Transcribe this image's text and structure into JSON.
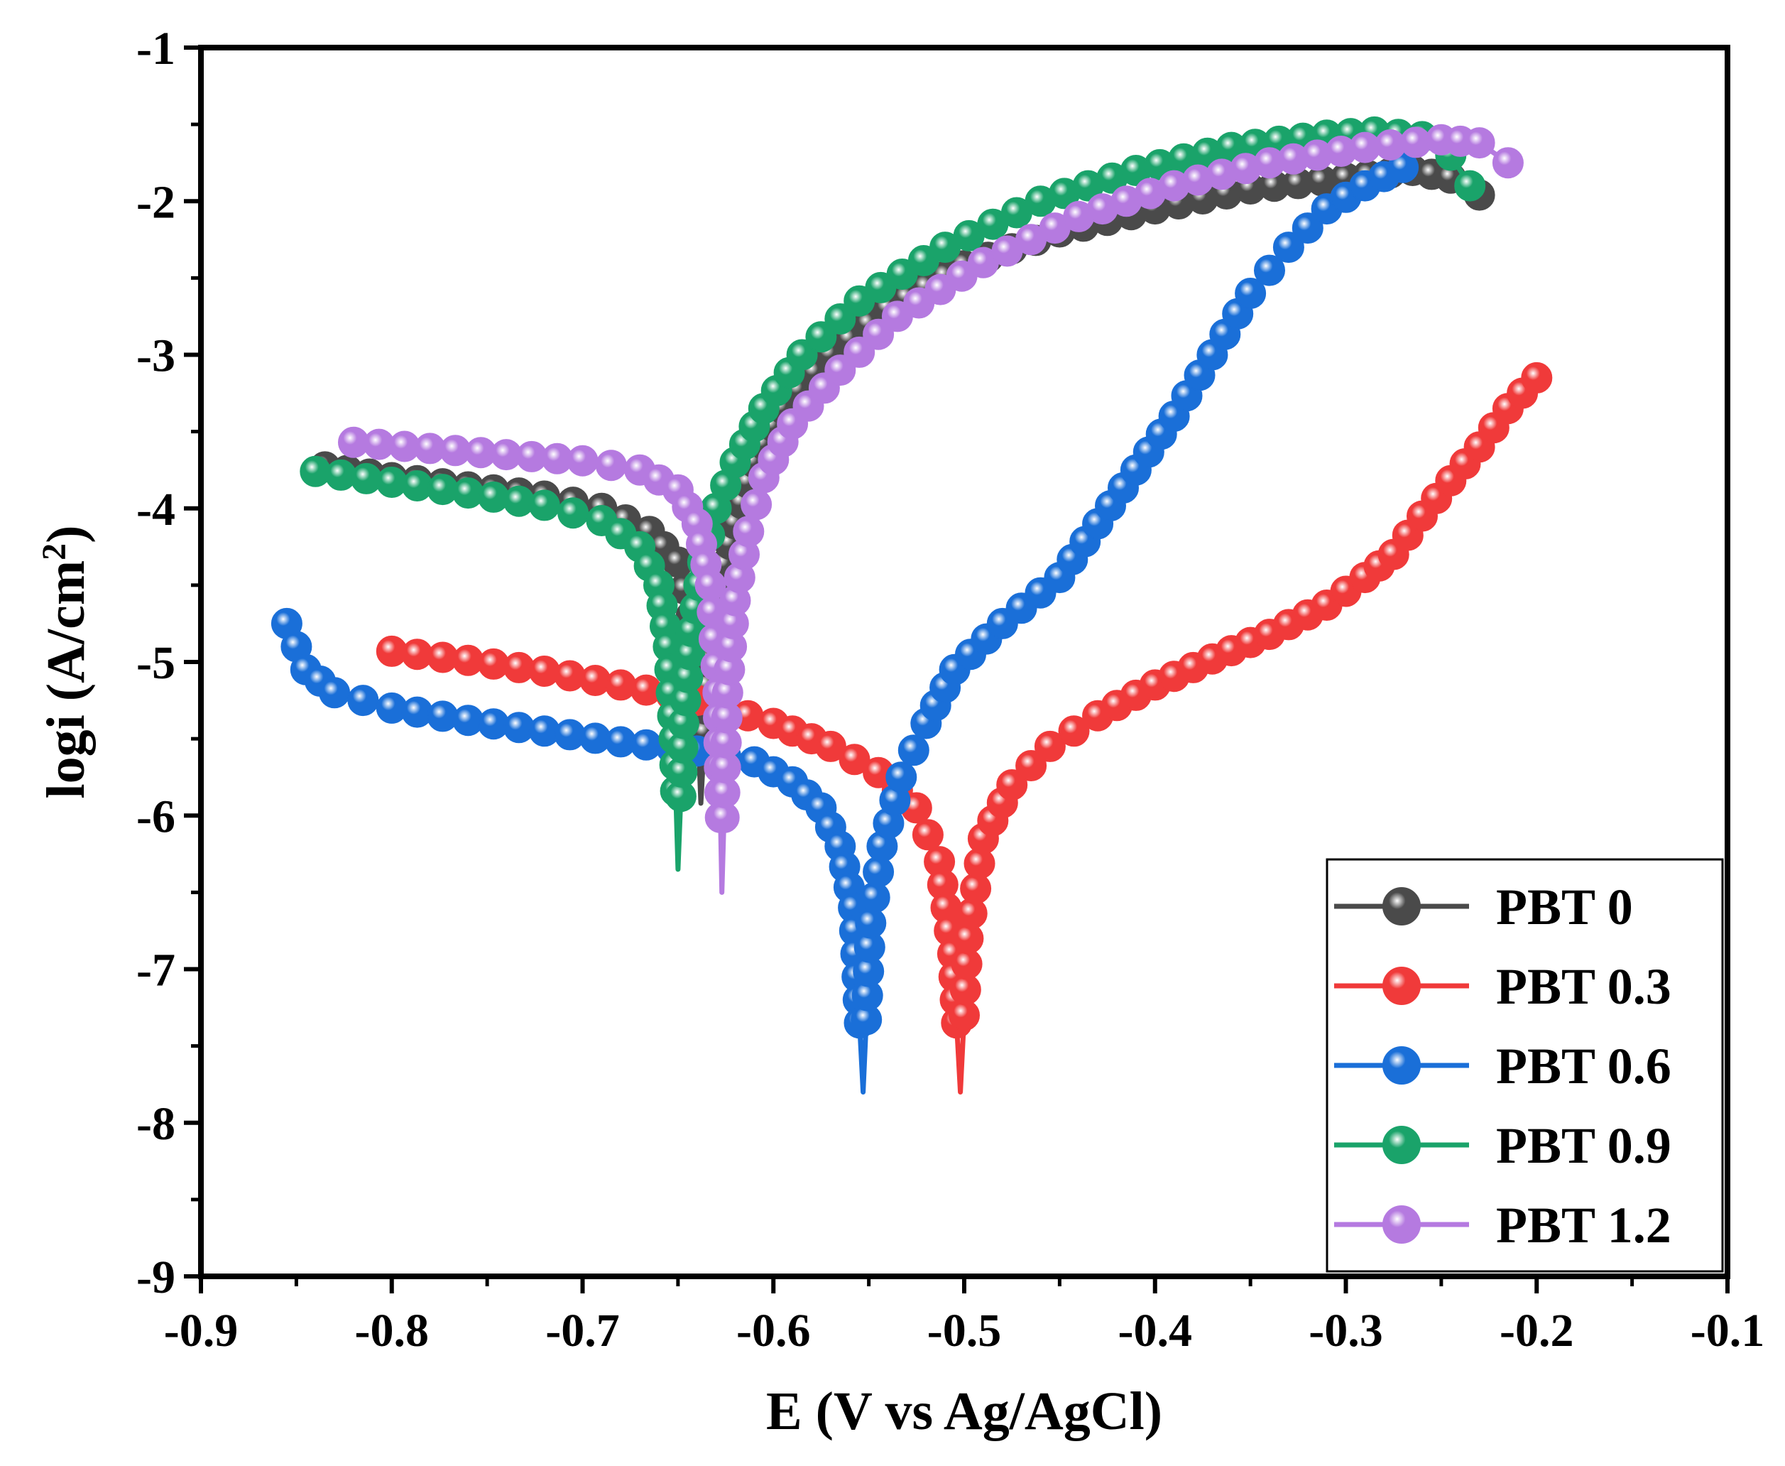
{
  "chart_data": {
    "type": "line",
    "title": "",
    "xlabel": "E (V vs Ag/AgCl)",
    "ylabel_main": "logi (A/cm",
    "ylabel_sup": "2",
    "ylabel_close": ")",
    "xlim": [
      -0.9,
      -0.1
    ],
    "ylim": [
      -9,
      -1
    ],
    "x_ticks": [
      "-0.9",
      "-0.8",
      "-0.7",
      "-0.6",
      "-0.5",
      "-0.4",
      "-0.3",
      "-0.2",
      "-0.1"
    ],
    "y_ticks": [
      "-1",
      "-2",
      "-3",
      "-4",
      "-5",
      "-6",
      "-7",
      "-8",
      "-9"
    ],
    "grid": false,
    "legend_position": "bottom-right",
    "series": [
      {
        "name": "PBT 0",
        "color": "#4a4a4a",
        "cathodic": [
          [
            -0.835,
            -3.73
          ],
          [
            -0.8,
            -3.8
          ],
          [
            -0.76,
            -3.86
          ],
          [
            -0.72,
            -3.92
          ],
          [
            -0.69,
            -4.0
          ],
          [
            -0.665,
            -4.15
          ],
          [
            -0.65,
            -4.35
          ],
          [
            -0.643,
            -4.7
          ],
          [
            -0.64,
            -5.3
          ],
          [
            -0.638,
            -5.92
          ]
        ],
        "anodic": [
          [
            -0.638,
            -5.92
          ],
          [
            -0.634,
            -5.0
          ],
          [
            -0.628,
            -4.5
          ],
          [
            -0.62,
            -4.1
          ],
          [
            -0.61,
            -3.7
          ],
          [
            -0.595,
            -3.35
          ],
          [
            -0.57,
            -3.0
          ],
          [
            -0.54,
            -2.7
          ],
          [
            -0.5,
            -2.42
          ],
          [
            -0.45,
            -2.2
          ],
          [
            -0.4,
            -2.05
          ],
          [
            -0.35,
            -1.92
          ],
          [
            -0.3,
            -1.85
          ],
          [
            -0.265,
            -1.8
          ],
          [
            -0.245,
            -1.85
          ],
          [
            -0.23,
            -1.96
          ]
        ]
      },
      {
        "name": "PBT 0.3",
        "color": "#f03a3a",
        "cathodic": [
          [
            -0.8,
            -4.93
          ],
          [
            -0.76,
            -4.99
          ],
          [
            -0.72,
            -5.06
          ],
          [
            -0.68,
            -5.15
          ],
          [
            -0.64,
            -5.25
          ],
          [
            -0.6,
            -5.4
          ],
          [
            -0.57,
            -5.55
          ],
          [
            -0.545,
            -5.72
          ],
          [
            -0.525,
            -5.95
          ],
          [
            -0.513,
            -6.3
          ],
          [
            -0.506,
            -6.9
          ],
          [
            -0.502,
            -7.8
          ]
        ],
        "anodic": [
          [
            -0.502,
            -7.8
          ],
          [
            -0.498,
            -6.8
          ],
          [
            -0.49,
            -6.15
          ],
          [
            -0.475,
            -5.8
          ],
          [
            -0.455,
            -5.55
          ],
          [
            -0.43,
            -5.35
          ],
          [
            -0.4,
            -5.15
          ],
          [
            -0.37,
            -4.98
          ],
          [
            -0.34,
            -4.82
          ],
          [
            -0.31,
            -4.63
          ],
          [
            -0.29,
            -4.45
          ],
          [
            -0.275,
            -4.3
          ],
          [
            -0.26,
            -4.05
          ],
          [
            -0.245,
            -3.82
          ],
          [
            -0.23,
            -3.6
          ],
          [
            -0.215,
            -3.35
          ],
          [
            -0.2,
            -3.15
          ]
        ]
      },
      {
        "name": "PBT 0.6",
        "color": "#1a6fd8",
        "cathodic": [
          [
            -0.855,
            -4.75
          ],
          [
            -0.845,
            -5.05
          ],
          [
            -0.83,
            -5.2
          ],
          [
            -0.8,
            -5.3
          ],
          [
            -0.76,
            -5.38
          ],
          [
            -0.72,
            -5.45
          ],
          [
            -0.68,
            -5.52
          ],
          [
            -0.64,
            -5.58
          ],
          [
            -0.61,
            -5.65
          ],
          [
            -0.59,
            -5.78
          ],
          [
            -0.575,
            -5.95
          ],
          [
            -0.565,
            -6.2
          ],
          [
            -0.558,
            -6.6
          ],
          [
            -0.553,
            -7.8
          ]
        ],
        "anodic": [
          [
            -0.553,
            -7.8
          ],
          [
            -0.549,
            -6.7
          ],
          [
            -0.543,
            -6.2
          ],
          [
            -0.533,
            -5.75
          ],
          [
            -0.52,
            -5.4
          ],
          [
            -0.505,
            -5.05
          ],
          [
            -0.48,
            -4.75
          ],
          [
            -0.45,
            -4.45
          ],
          [
            -0.43,
            -4.1
          ],
          [
            -0.41,
            -3.75
          ],
          [
            -0.39,
            -3.4
          ],
          [
            -0.37,
            -3.0
          ],
          [
            -0.35,
            -2.6
          ],
          [
            -0.33,
            -2.3
          ],
          [
            -0.31,
            -2.05
          ],
          [
            -0.29,
            -1.9
          ],
          [
            -0.27,
            -1.78
          ]
        ]
      },
      {
        "name": "PBT 0.9",
        "color": "#1aa36a",
        "cathodic": [
          [
            -0.84,
            -3.76
          ],
          [
            -0.8,
            -3.83
          ],
          [
            -0.76,
            -3.9
          ],
          [
            -0.72,
            -3.98
          ],
          [
            -0.69,
            -4.08
          ],
          [
            -0.67,
            -4.25
          ],
          [
            -0.66,
            -4.5
          ],
          [
            -0.655,
            -4.9
          ],
          [
            -0.652,
            -5.5
          ],
          [
            -0.65,
            -6.35
          ]
        ],
        "anodic": [
          [
            -0.65,
            -6.35
          ],
          [
            -0.647,
            -5.4
          ],
          [
            -0.643,
            -4.8
          ],
          [
            -0.637,
            -4.35
          ],
          [
            -0.63,
            -4.0
          ],
          [
            -0.62,
            -3.7
          ],
          [
            -0.605,
            -3.35
          ],
          [
            -0.585,
            -3.0
          ],
          [
            -0.555,
            -2.65
          ],
          [
            -0.51,
            -2.3
          ],
          [
            -0.46,
            -2.0
          ],
          [
            -0.41,
            -1.8
          ],
          [
            -0.36,
            -1.65
          ],
          [
            -0.31,
            -1.57
          ],
          [
            -0.285,
            -1.55
          ],
          [
            -0.26,
            -1.58
          ],
          [
            -0.245,
            -1.7
          ],
          [
            -0.235,
            -1.9
          ]
        ]
      },
      {
        "name": "PBT 1.2",
        "color": "#b57ae0",
        "cathodic": [
          [
            -0.82,
            -3.57
          ],
          [
            -0.78,
            -3.61
          ],
          [
            -0.74,
            -3.65
          ],
          [
            -0.7,
            -3.69
          ],
          [
            -0.67,
            -3.75
          ],
          [
            -0.65,
            -3.88
          ],
          [
            -0.64,
            -4.1
          ],
          [
            -0.633,
            -4.5
          ],
          [
            -0.629,
            -5.2
          ],
          [
            -0.627,
            -6.5
          ]
        ],
        "anodic": [
          [
            -0.627,
            -6.5
          ],
          [
            -0.624,
            -5.2
          ],
          [
            -0.62,
            -4.6
          ],
          [
            -0.613,
            -4.15
          ],
          [
            -0.605,
            -3.8
          ],
          [
            -0.59,
            -3.45
          ],
          [
            -0.565,
            -3.1
          ],
          [
            -0.535,
            -2.75
          ],
          [
            -0.49,
            -2.4
          ],
          [
            -0.44,
            -2.1
          ],
          [
            -0.39,
            -1.9
          ],
          [
            -0.34,
            -1.75
          ],
          [
            -0.29,
            -1.65
          ],
          [
            -0.25,
            -1.6
          ],
          [
            -0.23,
            -1.62
          ],
          [
            -0.215,
            -1.75
          ]
        ]
      }
    ]
  }
}
